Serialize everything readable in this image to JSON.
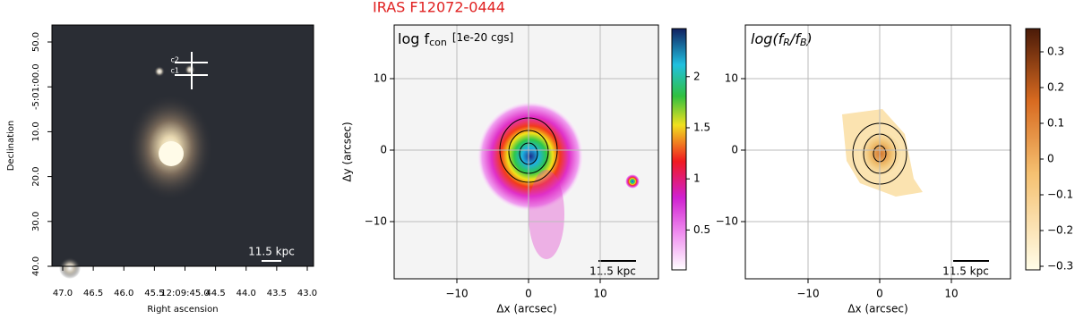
{
  "figure": {
    "title": "IRAS F12072-0444",
    "panels": [
      {
        "xlabel": "Right ascension",
        "ylabel": "Declination",
        "xticks": [
          "47.0",
          "46.5",
          "46.0",
          "45.5",
          "12:09:45.0",
          "44.5",
          "44.0",
          "43.5",
          "43.0"
        ],
        "yticks": [
          "50.0",
          "-5:01:00.0",
          "10.0",
          "20.0",
          "30.0",
          "40.0"
        ],
        "annotations": [
          "c2",
          "c1"
        ],
        "scale_label": "11.5 kpc"
      },
      {
        "label_main": "log f",
        "label_sub": "con",
        "units": "[1e-20 cgs]",
        "xlabel": "Δx (arcsec)",
        "ylabel": "Δy (arcsec)",
        "xlim": [
          -18.75,
          18.125
        ],
        "ylim": [
          -18,
          17.5
        ],
        "xticks": [
          {
            "value": -10,
            "label": "−10"
          },
          0,
          10
        ],
        "yticks": [
          {
            "value": -10,
            "label": "−10"
          },
          0,
          10
        ],
        "clim": [
          0.11,
          2.47
        ],
        "cticks": [
          0.5,
          1.0,
          1.5,
          2.0
        ],
        "scale_label": "11.5 kpc",
        "grid": true
      },
      {
        "label_parts": [
          "log(f",
          "R",
          "/f",
          "B",
          ")"
        ],
        "xlabel": "Δx (arcsec)",
        "xlim": [
          -18.75,
          18.25
        ],
        "ylim": [
          -18,
          17.5
        ],
        "xticks": [
          {
            "value": -10,
            "label": "−10"
          },
          0,
          10
        ],
        "yticks": [
          {
            "value": -10,
            "label": "−10"
          },
          0,
          10
        ],
        "clim": [
          -0.31,
          0.365
        ],
        "cticks": [
          {
            "value": -0.3,
            "label": "−0.3"
          },
          {
            "value": -0.2,
            "label": "−0.2"
          },
          {
            "value": -0.1,
            "label": "−0.1"
          },
          0.0,
          0.1,
          0.2,
          0.3
        ],
        "scale_label": "11.5 kpc",
        "grid": true
      }
    ]
  }
}
